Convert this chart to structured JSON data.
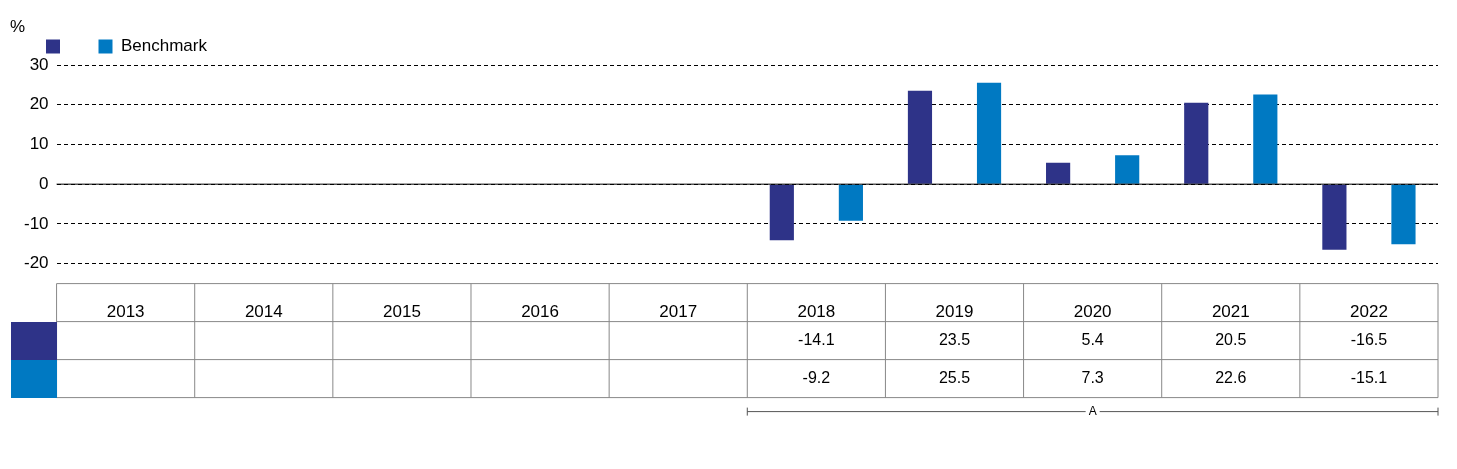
{
  "chart_data": {
    "type": "bar",
    "ylabel": "%",
    "categories": [
      "2013",
      "2014",
      "2015",
      "2016",
      "2017",
      "2018",
      "2019",
      "2020",
      "2021",
      "2022"
    ],
    "series": [
      {
        "color": "#2e3388",
        "values": [
          null,
          null,
          null,
          null,
          null,
          -14.1,
          23.5,
          5.4,
          20.5,
          -16.5
        ]
      },
      {
        "name": "Benchmark",
        "color": "#0079c2",
        "values": [
          null,
          null,
          null,
          null,
          null,
          -9.2,
          25.5,
          7.3,
          22.6,
          -15.1
        ]
      }
    ],
    "ylim": [
      -20,
      30
    ],
    "yticks": [
      -20,
      -10,
      0,
      10,
      20,
      30
    ],
    "grid": "y",
    "legend": "top left",
    "data_labels": true,
    "annotations": [
      "A"
    ]
  }
}
